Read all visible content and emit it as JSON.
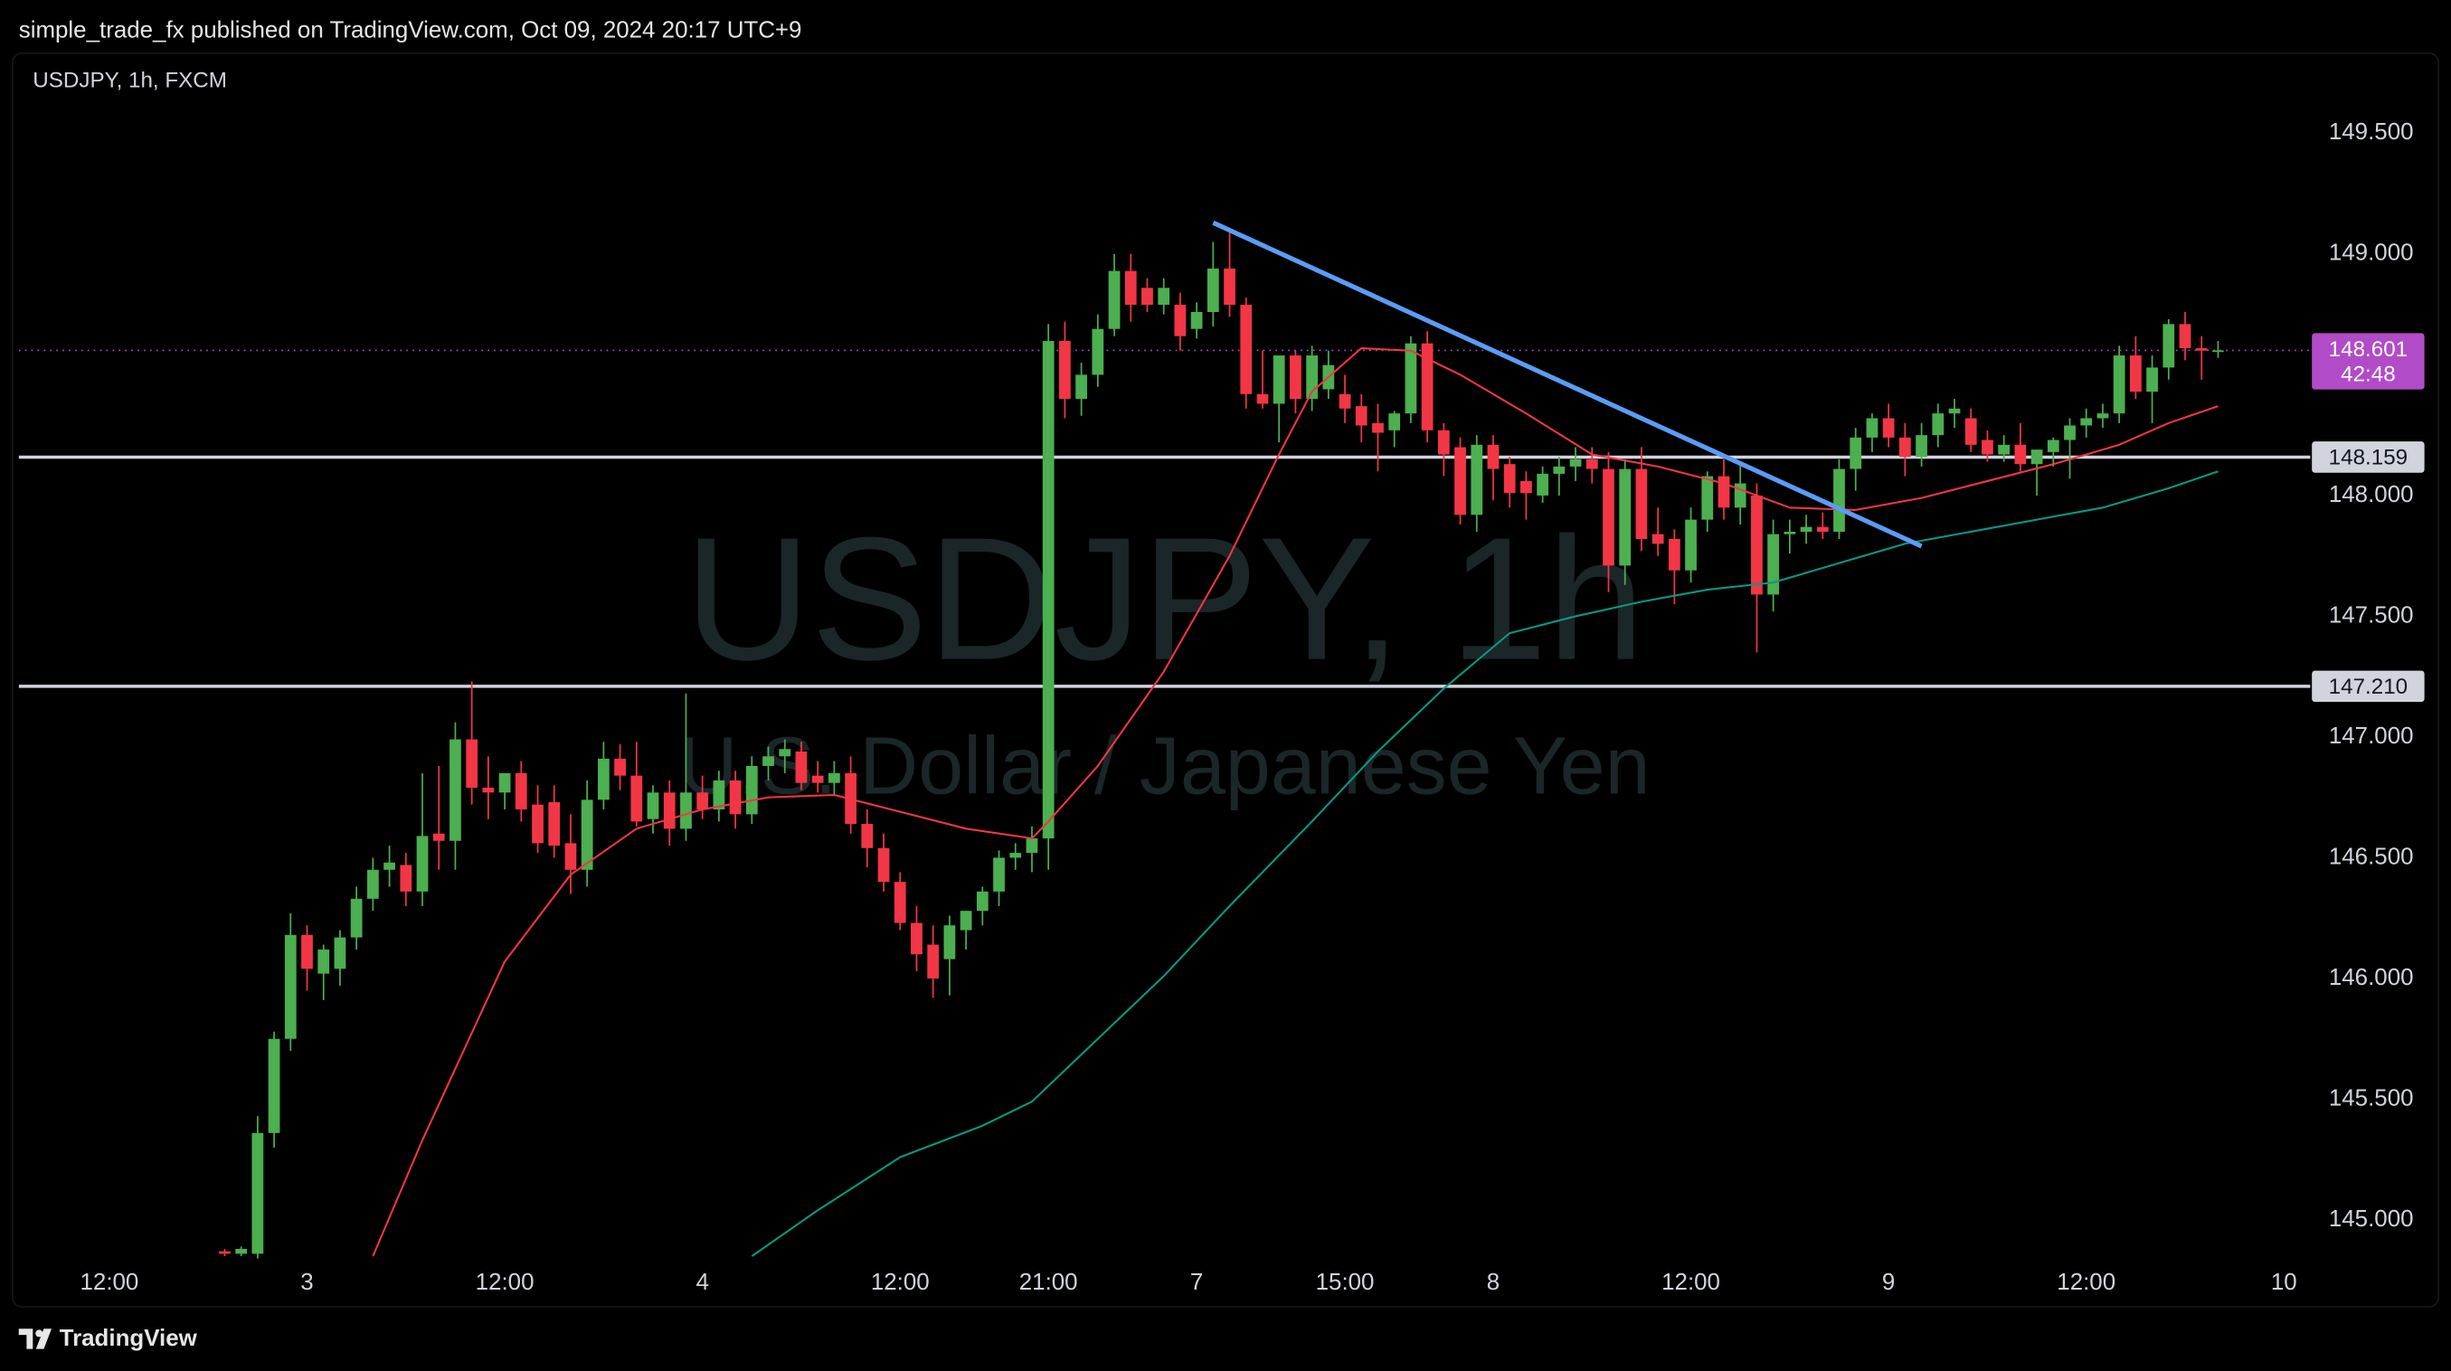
{
  "header": "simple_trade_fx published on TradingView.com, Oct 09, 2024 20:17 UTC+9",
  "footer": "TradingView",
  "chart_data": {
    "type": "candlestick",
    "title": "USDJPY, 1h, FXCM",
    "watermark": "USDJPY, 1h",
    "watermark_subtitle": "U.S. Dollar / Japanese Yen",
    "up_color": "#4caf50",
    "down_color": "#f23645",
    "open": [
      144.87,
      144.86,
      144.86,
      145.36,
      145.75,
      146.18,
      146.02,
      146.04,
      146.17,
      146.33,
      146.45,
      146.47,
      146.36,
      146.6,
      146.57,
      146.99,
      146.79,
      146.77,
      146.85,
      146.72,
      146.73,
      146.56,
      146.45,
      146.74,
      146.91,
      146.84,
      146.66,
      146.77,
      146.62,
      146.77,
      146.7,
      146.82,
      146.68,
      146.88,
      146.92,
      146.94,
      146.84,
      146.81,
      146.85,
      146.64,
      146.54,
      146.4,
      146.23,
      146.14,
      146.08,
      146.2,
      146.28,
      146.36,
      146.5,
      146.52,
      146.58,
      148.64,
      148.4,
      148.5,
      148.69,
      148.93,
      148.86,
      148.79,
      148.79,
      148.69,
      148.76,
      148.94,
      148.79,
      148.42,
      148.38,
      148.58,
      148.4,
      148.44,
      148.42,
      148.37,
      148.3,
      148.27,
      148.34,
      148.63,
      148.27,
      148.2,
      147.92,
      148.21,
      148.13,
      148.06,
      148.0,
      148.09,
      148.12,
      148.15,
      148.11,
      147.71,
      148.11,
      147.84,
      147.82,
      147.69,
      147.9,
      148.08,
      147.95,
      148.0,
      147.59,
      147.84,
      147.85,
      147.87,
      147.85,
      148.11,
      148.24,
      148.32,
      148.24,
      148.16,
      148.25,
      148.34,
      148.32,
      148.23,
      148.17,
      148.21,
      148.13,
      148.18,
      148.23,
      148.29,
      148.32,
      148.34,
      148.58,
      148.43,
      148.53,
      148.71,
      148.61,
      148.6
    ],
    "high": [
      144.88,
      144.89,
      145.43,
      145.78,
      146.27,
      146.22,
      146.14,
      146.2,
      146.38,
      146.5,
      146.55,
      146.52,
      146.85,
      146.88,
      147.06,
      147.23,
      146.92,
      146.85,
      146.9,
      146.8,
      146.8,
      146.68,
      146.82,
      146.98,
      146.97,
      146.98,
      146.8,
      146.82,
      147.18,
      146.84,
      146.86,
      146.86,
      146.92,
      146.96,
      146.99,
      146.98,
      146.9,
      146.9,
      146.92,
      146.7,
      146.6,
      146.44,
      146.3,
      146.22,
      146.26,
      146.28,
      146.38,
      146.53,
      146.56,
      146.63,
      148.71,
      148.72,
      148.55,
      148.75,
      149.0,
      149.0,
      148.9,
      148.9,
      148.84,
      148.8,
      149.05,
      149.1,
      148.82,
      148.6,
      148.58,
      148.6,
      148.62,
      148.6,
      148.5,
      148.42,
      148.38,
      148.35,
      148.66,
      148.68,
      148.3,
      148.24,
      148.25,
      148.25,
      148.16,
      148.1,
      148.12,
      148.16,
      148.2,
      148.2,
      148.18,
      148.15,
      148.2,
      147.95,
      147.86,
      147.95,
      148.1,
      148.15,
      148.13,
      148.05,
      147.9,
      147.9,
      147.92,
      147.93,
      148.15,
      148.28,
      148.34,
      148.38,
      148.3,
      148.3,
      148.38,
      148.4,
      148.36,
      148.27,
      148.25,
      148.3,
      148.19,
      148.24,
      148.32,
      148.36,
      148.38,
      148.62,
      148.66,
      148.58,
      148.73,
      148.76,
      148.66,
      148.64
    ],
    "low": [
      144.85,
      144.85,
      144.84,
      145.3,
      145.7,
      145.95,
      145.91,
      145.97,
      146.12,
      146.28,
      146.38,
      146.3,
      146.3,
      146.45,
      146.45,
      146.72,
      146.66,
      146.7,
      146.65,
      146.52,
      146.5,
      146.35,
      146.38,
      146.7,
      146.78,
      146.63,
      146.6,
      146.55,
      146.57,
      146.66,
      146.65,
      146.62,
      146.64,
      146.82,
      146.85,
      146.78,
      146.77,
      146.76,
      146.6,
      146.46,
      146.36,
      146.2,
      146.03,
      145.92,
      145.93,
      146.12,
      146.22,
      146.3,
      146.45,
      146.44,
      146.45,
      148.32,
      148.33,
      148.45,
      148.66,
      148.72,
      148.76,
      148.75,
      148.6,
      148.65,
      148.7,
      148.74,
      148.36,
      148.36,
      148.22,
      148.34,
      148.35,
      148.4,
      148.3,
      148.22,
      148.1,
      148.2,
      148.3,
      148.22,
      148.08,
      147.88,
      147.85,
      147.98,
      147.95,
      147.9,
      147.97,
      148.0,
      148.06,
      148.05,
      147.6,
      147.63,
      147.77,
      147.75,
      147.55,
      147.64,
      147.85,
      147.9,
      147.88,
      147.35,
      147.52,
      147.76,
      147.8,
      147.82,
      147.82,
      148.02,
      148.18,
      148.2,
      148.08,
      148.12,
      148.2,
      148.28,
      148.18,
      148.14,
      148.14,
      148.1,
      148.0,
      148.12,
      148.07,
      148.24,
      148.28,
      148.3,
      148.4,
      148.3,
      148.48,
      148.56,
      148.48,
      148.57
    ],
    "close": [
      144.86,
      144.88,
      145.36,
      145.75,
      146.18,
      146.04,
      146.12,
      146.17,
      146.33,
      146.45,
      146.48,
      146.36,
      146.59,
      146.57,
      146.99,
      146.79,
      146.77,
      146.85,
      146.7,
      146.56,
      146.55,
      146.45,
      146.74,
      146.91,
      146.84,
      146.65,
      146.77,
      146.62,
      146.77,
      146.7,
      146.82,
      146.68,
      146.88,
      146.92,
      146.95,
      146.81,
      146.81,
      146.85,
      146.64,
      146.54,
      146.4,
      146.23,
      146.1,
      146.0,
      146.22,
      146.28,
      146.36,
      146.5,
      146.52,
      146.58,
      148.64,
      148.4,
      148.5,
      148.69,
      148.93,
      148.79,
      148.79,
      148.86,
      148.66,
      148.76,
      148.94,
      148.79,
      148.42,
      148.38,
      148.58,
      148.4,
      148.58,
      148.54,
      148.36,
      148.29,
      148.26,
      148.34,
      148.63,
      148.27,
      148.17,
      147.92,
      148.21,
      148.11,
      148.01,
      148.01,
      148.09,
      148.12,
      148.15,
      148.11,
      147.71,
      148.11,
      147.82,
      147.8,
      147.69,
      147.9,
      148.08,
      147.95,
      148.05,
      147.59,
      147.84,
      147.85,
      147.87,
      147.85,
      148.11,
      148.24,
      148.32,
      148.24,
      148.16,
      148.25,
      148.34,
      148.36,
      148.21,
      148.17,
      148.21,
      148.13,
      148.19,
      148.23,
      148.29,
      148.32,
      148.34,
      148.58,
      148.43,
      148.53,
      148.71,
      148.61,
      148.6,
      148.601
    ],
    "series": [
      {
        "color": "#f23645",
        "x": [
          9,
          12,
          17,
          21,
          25,
          29,
          33,
          37,
          41,
          45,
          49,
          50,
          53,
          57,
          61,
          64,
          66,
          69,
          72,
          75,
          79,
          83,
          87,
          91,
          95,
          99,
          103,
          107,
          111,
          115,
          118,
          121
        ],
        "values": [
          144.85,
          145.33,
          146.07,
          146.43,
          146.62,
          146.7,
          146.75,
          146.76,
          146.69,
          146.62,
          146.58,
          146.65,
          146.88,
          147.27,
          147.75,
          148.17,
          148.43,
          148.61,
          148.6,
          148.5,
          148.34,
          148.17,
          148.12,
          148.05,
          147.95,
          147.94,
          147.99,
          148.06,
          148.13,
          148.21,
          148.3,
          148.37
        ]
      },
      {
        "color": "#089981",
        "x": [
          32,
          36,
          41,
          46,
          49,
          53,
          57,
          61,
          66,
          70,
          74,
          78,
          82,
          86,
          90,
          94,
          98,
          102,
          106,
          110,
          114,
          118,
          121
        ],
        "values": [
          144.85,
          145.04,
          145.26,
          145.39,
          145.49,
          145.75,
          146.01,
          146.3,
          146.65,
          146.94,
          147.2,
          147.43,
          147.5,
          147.56,
          147.61,
          147.64,
          147.72,
          147.8,
          147.85,
          147.9,
          147.95,
          148.03,
          148.1
        ]
      }
    ],
    "trendline": {
      "color": "#5b9cf6",
      "x": [
        60,
        103
      ],
      "values": [
        149.13,
        147.79
      ]
    },
    "hlines": [
      {
        "value": 148.159,
        "label": "148.159"
      },
      {
        "value": 147.21,
        "label": "147.210"
      }
    ],
    "last_price": {
      "value": 148.601,
      "label": "148.601",
      "countdown": "42:48",
      "color": "#b24bc7"
    },
    "xlim": [
      -12.5,
      126.6
    ],
    "xticks": [
      {
        "value": -7,
        "label": "12:00"
      },
      {
        "value": 5,
        "label": "3"
      },
      {
        "value": 17,
        "label": "12:00"
      },
      {
        "value": 29,
        "label": "4"
      },
      {
        "value": 41,
        "label": "12:00"
      },
      {
        "value": 50,
        "label": "21:00"
      },
      {
        "value": 59,
        "label": "7"
      },
      {
        "value": 68,
        "label": "15:00"
      },
      {
        "value": 77,
        "label": "8"
      },
      {
        "value": 89,
        "label": "12:00"
      },
      {
        "value": 101,
        "label": "9"
      },
      {
        "value": 113,
        "label": "12:00"
      },
      {
        "value": 125,
        "label": "10"
      }
    ],
    "ylim": [
      144.828,
      149.825
    ],
    "yticks": [
      {
        "value": 145,
        "label": "145.000"
      },
      {
        "value": 145.5,
        "label": "145.500"
      },
      {
        "value": 146,
        "label": "146.000"
      },
      {
        "value": 146.5,
        "label": "146.500"
      },
      {
        "value": 147,
        "label": "147.000"
      },
      {
        "value": 147.5,
        "label": "147.500"
      },
      {
        "value": 148,
        "label": "148.000"
      },
      {
        "value": 149,
        "label": "149.000"
      },
      {
        "value": 149.5,
        "label": "149.500"
      }
    ]
  }
}
